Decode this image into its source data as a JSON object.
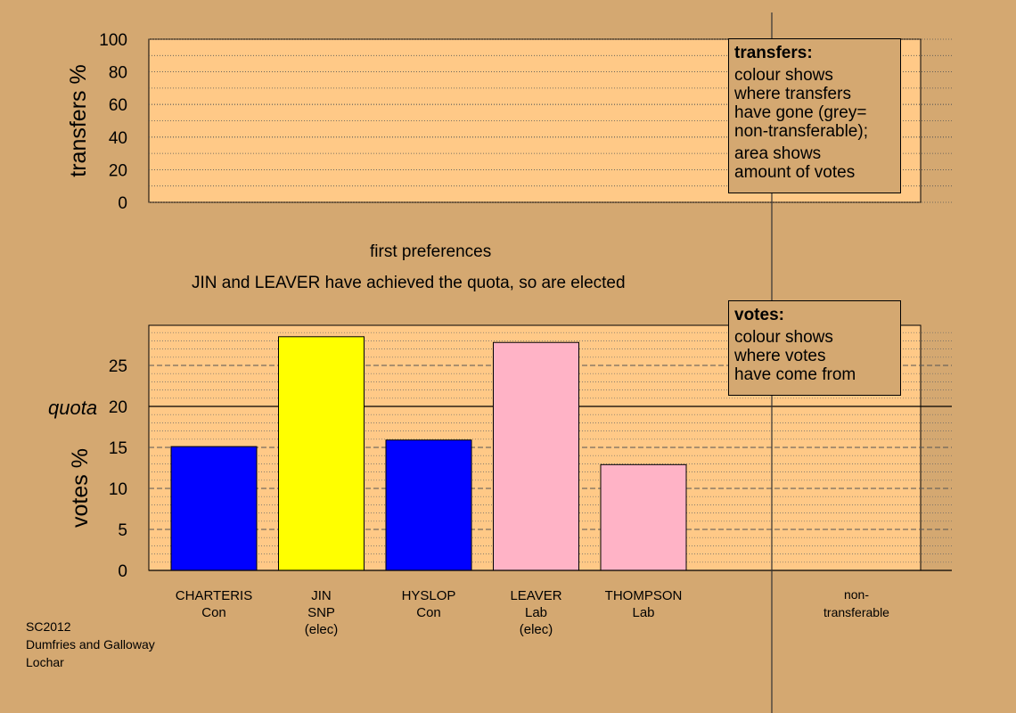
{
  "chart_data": [
    {
      "type": "bar",
      "ylabel": "transfers %",
      "ylim": [
        0,
        100
      ],
      "yticks": [
        0,
        20,
        40,
        60,
        80,
        100
      ],
      "categories": [],
      "values": [],
      "legend": {
        "title": "transfers:",
        "lines": [
          "colour shows",
          "where transfers",
          "have gone (grey=",
          "non-transferable);"
        ],
        "lines2": [
          "area shows",
          "amount of votes"
        ],
        "placement": "top-right"
      }
    },
    {
      "type": "bar",
      "ylabel": "votes %",
      "ylim": [
        0,
        29
      ],
      "yticks": [
        0,
        5,
        10,
        15,
        20,
        25
      ],
      "quota": 20,
      "quota_label": "quota",
      "categories": [
        {
          "name": "CHARTERIS",
          "party": "Con",
          "note": ""
        },
        {
          "name": "JIN",
          "party": "SNP",
          "note": "(elec)"
        },
        {
          "name": "HYSLOP",
          "party": "Con",
          "note": ""
        },
        {
          "name": "LEAVER",
          "party": "Lab",
          "note": "(elec)"
        },
        {
          "name": "THOMPSON",
          "party": "Lab",
          "note": ""
        }
      ],
      "values": [
        15.1,
        28.5,
        15.9,
        27.8,
        12.9
      ],
      "colors": [
        "#0000FF",
        "#FFFF00",
        "#0000FF",
        "#FFB3C6",
        "#FFB3C6"
      ],
      "nontransferable": {
        "label_line1": "non-",
        "label_line2": "transferable",
        "value": 0
      },
      "legend": {
        "title": "votes:",
        "lines": [
          "colour shows",
          "where votes",
          "have come from"
        ],
        "placement": "top-right"
      }
    }
  ],
  "captions": {
    "stage": "first preferences",
    "elected": "JIN and LEAVER have achieved the quota, so are elected"
  },
  "footer": {
    "line1": "SC2012",
    "line2": "Dumfries and Galloway",
    "line3": "Lochar"
  },
  "colors": {
    "background": "#D4A871",
    "plot_bg": "#FFC987"
  }
}
